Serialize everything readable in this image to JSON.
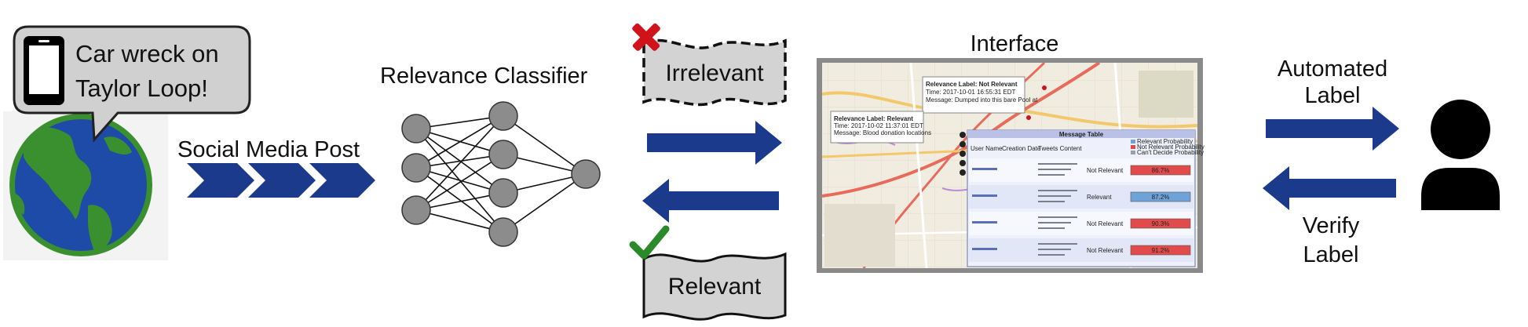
{
  "globe_bubble": {
    "line1": "Car wreck on",
    "line2": "Taylor Loop!"
  },
  "labels": {
    "social_media_post": "Social Media Post",
    "relevance_classifier": "Relevance Classifier",
    "interface": "Interface",
    "irrelevant": "Irrelevant",
    "relevant": "Relevant",
    "automated_label_1": "Automated",
    "automated_label_2": "Label",
    "verify_label_1": "Verify",
    "verify_label_2": "Label"
  },
  "interface_panel": {
    "table_title": "Message Table",
    "columns": [
      "User Name",
      "Creation Date",
      "Tweets Content"
    ],
    "legend": [
      "Relevant Probability",
      "Not Relevant Probability",
      "Can't Decide Probability"
    ],
    "rows": [
      {
        "label": "Not Relevant",
        "prob": "86.7%"
      },
      {
        "label": "Relevant",
        "prob": "87.2%"
      },
      {
        "label": "Not Relevant",
        "prob": "90.3%"
      },
      {
        "label": "Not Relevant",
        "prob": "91.2%"
      }
    ],
    "popup_1": {
      "line1": "Relevance Label: Not Relevant",
      "line2": "Time: 2017-10-01 16:55:31 EDT",
      "line3": "Message: Dumped into this bare Pool at"
    },
    "popup_2": {
      "line1": "Relevance Label: Relevant",
      "line2": "Time: 2017-10-02 11:37:01 EDT",
      "line3": "Message: Blood donation locations"
    }
  },
  "colors": {
    "arrow_navy": "#1b3a8c",
    "globe_ocean": "#1e4aa8",
    "globe_land": "#3a8f2e",
    "bubble_fill": "#d0d0d0",
    "neuron_fill": "#8c8c8c",
    "tag_fill": "#d3d3d3",
    "cross_red": "#d0121b",
    "check_green": "#2a8a2a",
    "person_black": "#000000"
  }
}
